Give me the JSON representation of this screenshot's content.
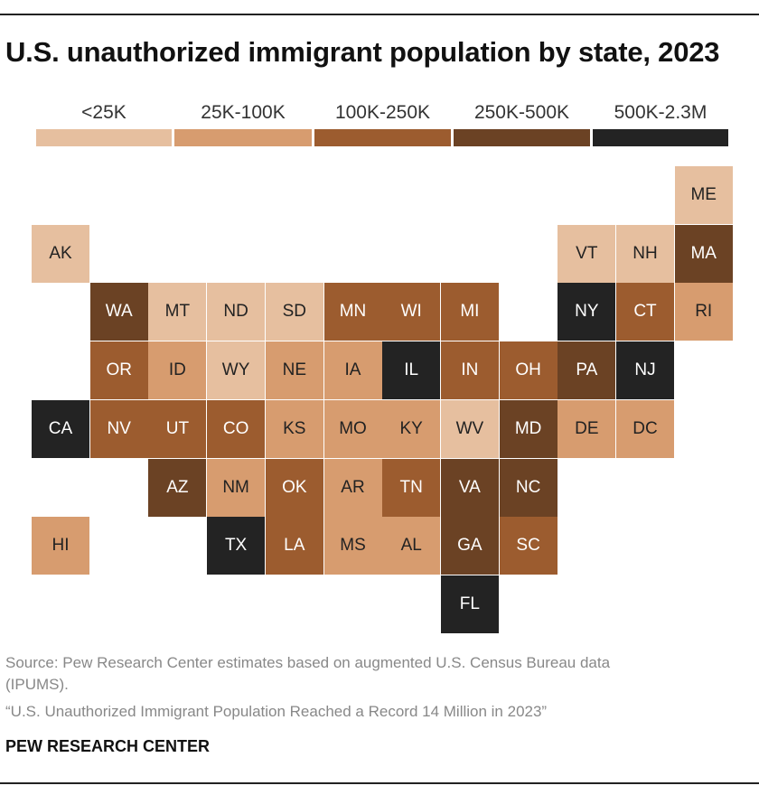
{
  "title": "U.S. unauthorized immigrant population by state, 2023",
  "legend": [
    {
      "label": "<25K",
      "color": "#e6bf9f"
    },
    {
      "label": "25K-100K",
      "color": "#d79c6f"
    },
    {
      "label": "100K-250K",
      "color": "#9c5c2f"
    },
    {
      "label": "250K-500K",
      "color": "#6b4224"
    },
    {
      "label": "500K-2.3M",
      "color": "#232323"
    }
  ],
  "states": [
    {
      "abbr": "ME",
      "col": 11,
      "row": 0,
      "tier": 0
    },
    {
      "abbr": "AK",
      "col": 0,
      "row": 1,
      "tier": 0
    },
    {
      "abbr": "VT",
      "col": 9,
      "row": 1,
      "tier": 0
    },
    {
      "abbr": "NH",
      "col": 10,
      "row": 1,
      "tier": 0
    },
    {
      "abbr": "MA",
      "col": 11,
      "row": 1,
      "tier": 3
    },
    {
      "abbr": "WA",
      "col": 1,
      "row": 2,
      "tier": 3
    },
    {
      "abbr": "MT",
      "col": 2,
      "row": 2,
      "tier": 0
    },
    {
      "abbr": "ND",
      "col": 3,
      "row": 2,
      "tier": 0
    },
    {
      "abbr": "SD",
      "col": 4,
      "row": 2,
      "tier": 0
    },
    {
      "abbr": "MN",
      "col": 5,
      "row": 2,
      "tier": 2
    },
    {
      "abbr": "WI",
      "col": 6,
      "row": 2,
      "tier": 2
    },
    {
      "abbr": "MI",
      "col": 7,
      "row": 2,
      "tier": 2
    },
    {
      "abbr": "NY",
      "col": 9,
      "row": 2,
      "tier": 4
    },
    {
      "abbr": "CT",
      "col": 10,
      "row": 2,
      "tier": 2
    },
    {
      "abbr": "RI",
      "col": 11,
      "row": 2,
      "tier": 1
    },
    {
      "abbr": "OR",
      "col": 1,
      "row": 3,
      "tier": 2
    },
    {
      "abbr": "ID",
      "col": 2,
      "row": 3,
      "tier": 1
    },
    {
      "abbr": "WY",
      "col": 3,
      "row": 3,
      "tier": 0
    },
    {
      "abbr": "NE",
      "col": 4,
      "row": 3,
      "tier": 1
    },
    {
      "abbr": "IA",
      "col": 5,
      "row": 3,
      "tier": 1
    },
    {
      "abbr": "IL",
      "col": 6,
      "row": 3,
      "tier": 4
    },
    {
      "abbr": "IN",
      "col": 7,
      "row": 3,
      "tier": 2
    },
    {
      "abbr": "OH",
      "col": 8,
      "row": 3,
      "tier": 2
    },
    {
      "abbr": "PA",
      "col": 9,
      "row": 3,
      "tier": 3
    },
    {
      "abbr": "NJ",
      "col": 10,
      "row": 3,
      "tier": 4
    },
    {
      "abbr": "CA",
      "col": 0,
      "row": 4,
      "tier": 4
    },
    {
      "abbr": "NV",
      "col": 1,
      "row": 4,
      "tier": 2
    },
    {
      "abbr": "UT",
      "col": 2,
      "row": 4,
      "tier": 2
    },
    {
      "abbr": "CO",
      "col": 3,
      "row": 4,
      "tier": 2
    },
    {
      "abbr": "KS",
      "col": 4,
      "row": 4,
      "tier": 1
    },
    {
      "abbr": "MO",
      "col": 5,
      "row": 4,
      "tier": 1
    },
    {
      "abbr": "KY",
      "col": 6,
      "row": 4,
      "tier": 1
    },
    {
      "abbr": "WV",
      "col": 7,
      "row": 4,
      "tier": 0
    },
    {
      "abbr": "MD",
      "col": 8,
      "row": 4,
      "tier": 3
    },
    {
      "abbr": "DE",
      "col": 9,
      "row": 4,
      "tier": 1
    },
    {
      "abbr": "DC",
      "col": 10,
      "row": 4,
      "tier": 1
    },
    {
      "abbr": "AZ",
      "col": 2,
      "row": 5,
      "tier": 3
    },
    {
      "abbr": "NM",
      "col": 3,
      "row": 5,
      "tier": 1
    },
    {
      "abbr": "OK",
      "col": 4,
      "row": 5,
      "tier": 2
    },
    {
      "abbr": "AR",
      "col": 5,
      "row": 5,
      "tier": 1
    },
    {
      "abbr": "TN",
      "col": 6,
      "row": 5,
      "tier": 2
    },
    {
      "abbr": "VA",
      "col": 7,
      "row": 5,
      "tier": 3
    },
    {
      "abbr": "NC",
      "col": 8,
      "row": 5,
      "tier": 3
    },
    {
      "abbr": "HI",
      "col": 0,
      "row": 6,
      "tier": 1
    },
    {
      "abbr": "TX",
      "col": 3,
      "row": 6,
      "tier": 4
    },
    {
      "abbr": "LA",
      "col": 4,
      "row": 6,
      "tier": 2
    },
    {
      "abbr": "MS",
      "col": 5,
      "row": 6,
      "tier": 1
    },
    {
      "abbr": "AL",
      "col": 6,
      "row": 6,
      "tier": 1
    },
    {
      "abbr": "GA",
      "col": 7,
      "row": 6,
      "tier": 3
    },
    {
      "abbr": "SC",
      "col": 8,
      "row": 6,
      "tier": 2
    },
    {
      "abbr": "FL",
      "col": 7,
      "row": 7,
      "tier": 4
    }
  ],
  "source_line1": "Source: Pew Research Center estimates based on augmented U.S. Census Bureau data",
  "source_line2": "(IPUMS).",
  "source_line3": "“U.S. Unauthorized Immigrant Population Reached a Record 14 Million in 2023”",
  "brand": "PEW RESEARCH CENTER"
}
